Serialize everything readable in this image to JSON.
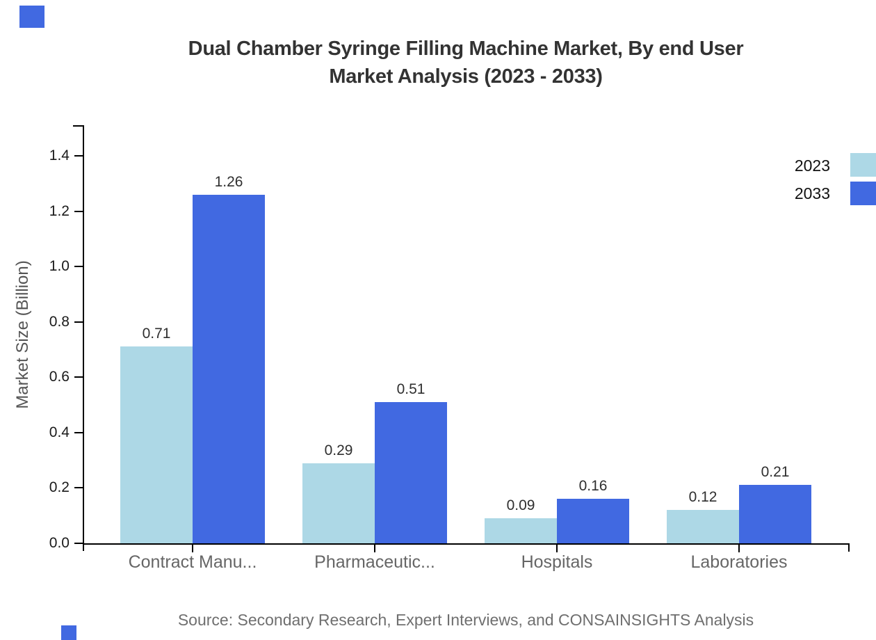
{
  "title": {
    "line1": "Dual Chamber Syringe Filling Machine Market, By end User",
    "line2": "Market Analysis (2023 - 2033)"
  },
  "source_note": "Source: Secondary Research, Expert Interviews, and CONSAINSIGHTS Analysis",
  "colors": {
    "series_2023": "#ADD8E6",
    "series_2033": "#4169E1",
    "axis": "#000000"
  },
  "chart_data": {
    "type": "bar",
    "title": "Dual Chamber Syringe Filling Machine Market, By end User Market Analysis (2023 - 2033)",
    "categories": [
      "Contract Manu...",
      "Pharmaceutic...",
      "Hospitals",
      "Laboratories"
    ],
    "series": [
      {
        "name": "2023",
        "color": "#ADD8E6",
        "values": [
          0.71,
          0.29,
          0.09,
          0.12
        ]
      },
      {
        "name": "2033",
        "color": "#4169E1",
        "values": [
          1.26,
          0.51,
          0.16,
          0.21
        ]
      }
    ],
    "xlabel": "",
    "ylabel": "Market Size (Billion)",
    "ylim": [
      0,
      1.5
    ],
    "yticks": [
      0.0,
      0.2,
      0.4,
      0.6,
      0.8,
      1.0,
      1.2,
      1.4
    ],
    "grid": false,
    "legend_position": "top-right",
    "value_labels": true
  }
}
